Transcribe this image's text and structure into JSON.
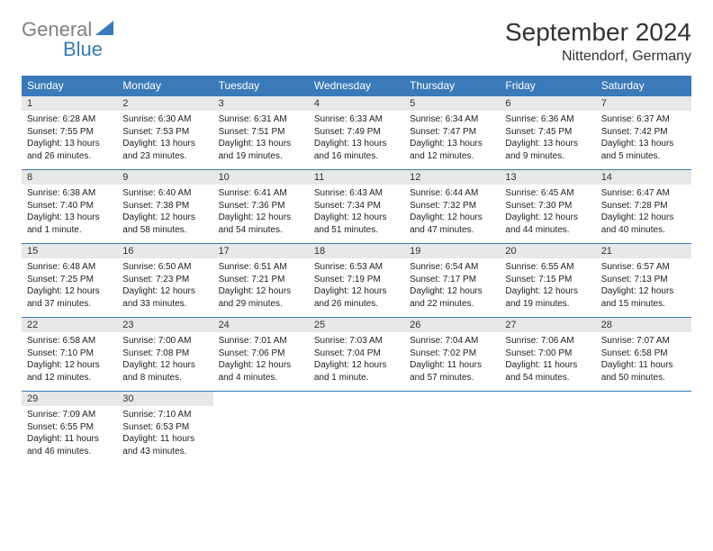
{
  "logo": {
    "text1": "General",
    "text2": "Blue"
  },
  "title": "September 2024",
  "location": "Nittendorf, Germany",
  "colors": {
    "header_bg": "#3a7ab8",
    "header_text": "#ffffff",
    "daynum_bg": "#e8e8e8",
    "text": "#222222",
    "border": "#3a7ab8"
  },
  "weekdays": [
    "Sunday",
    "Monday",
    "Tuesday",
    "Wednesday",
    "Thursday",
    "Friday",
    "Saturday"
  ],
  "days": [
    {
      "n": "1",
      "sunrise": "6:28 AM",
      "sunset": "7:55 PM",
      "daylight": "13 hours and 26 minutes."
    },
    {
      "n": "2",
      "sunrise": "6:30 AM",
      "sunset": "7:53 PM",
      "daylight": "13 hours and 23 minutes."
    },
    {
      "n": "3",
      "sunrise": "6:31 AM",
      "sunset": "7:51 PM",
      "daylight": "13 hours and 19 minutes."
    },
    {
      "n": "4",
      "sunrise": "6:33 AM",
      "sunset": "7:49 PM",
      "daylight": "13 hours and 16 minutes."
    },
    {
      "n": "5",
      "sunrise": "6:34 AM",
      "sunset": "7:47 PM",
      "daylight": "13 hours and 12 minutes."
    },
    {
      "n": "6",
      "sunrise": "6:36 AM",
      "sunset": "7:45 PM",
      "daylight": "13 hours and 9 minutes."
    },
    {
      "n": "7",
      "sunrise": "6:37 AM",
      "sunset": "7:42 PM",
      "daylight": "13 hours and 5 minutes."
    },
    {
      "n": "8",
      "sunrise": "6:38 AM",
      "sunset": "7:40 PM",
      "daylight": "13 hours and 1 minute."
    },
    {
      "n": "9",
      "sunrise": "6:40 AM",
      "sunset": "7:38 PM",
      "daylight": "12 hours and 58 minutes."
    },
    {
      "n": "10",
      "sunrise": "6:41 AM",
      "sunset": "7:36 PM",
      "daylight": "12 hours and 54 minutes."
    },
    {
      "n": "11",
      "sunrise": "6:43 AM",
      "sunset": "7:34 PM",
      "daylight": "12 hours and 51 minutes."
    },
    {
      "n": "12",
      "sunrise": "6:44 AM",
      "sunset": "7:32 PM",
      "daylight": "12 hours and 47 minutes."
    },
    {
      "n": "13",
      "sunrise": "6:45 AM",
      "sunset": "7:30 PM",
      "daylight": "12 hours and 44 minutes."
    },
    {
      "n": "14",
      "sunrise": "6:47 AM",
      "sunset": "7:28 PM",
      "daylight": "12 hours and 40 minutes."
    },
    {
      "n": "15",
      "sunrise": "6:48 AM",
      "sunset": "7:25 PM",
      "daylight": "12 hours and 37 minutes."
    },
    {
      "n": "16",
      "sunrise": "6:50 AM",
      "sunset": "7:23 PM",
      "daylight": "12 hours and 33 minutes."
    },
    {
      "n": "17",
      "sunrise": "6:51 AM",
      "sunset": "7:21 PM",
      "daylight": "12 hours and 29 minutes."
    },
    {
      "n": "18",
      "sunrise": "6:53 AM",
      "sunset": "7:19 PM",
      "daylight": "12 hours and 26 minutes."
    },
    {
      "n": "19",
      "sunrise": "6:54 AM",
      "sunset": "7:17 PM",
      "daylight": "12 hours and 22 minutes."
    },
    {
      "n": "20",
      "sunrise": "6:55 AM",
      "sunset": "7:15 PM",
      "daylight": "12 hours and 19 minutes."
    },
    {
      "n": "21",
      "sunrise": "6:57 AM",
      "sunset": "7:13 PM",
      "daylight": "12 hours and 15 minutes."
    },
    {
      "n": "22",
      "sunrise": "6:58 AM",
      "sunset": "7:10 PM",
      "daylight": "12 hours and 12 minutes."
    },
    {
      "n": "23",
      "sunrise": "7:00 AM",
      "sunset": "7:08 PM",
      "daylight": "12 hours and 8 minutes."
    },
    {
      "n": "24",
      "sunrise": "7:01 AM",
      "sunset": "7:06 PM",
      "daylight": "12 hours and 4 minutes."
    },
    {
      "n": "25",
      "sunrise": "7:03 AM",
      "sunset": "7:04 PM",
      "daylight": "12 hours and 1 minute."
    },
    {
      "n": "26",
      "sunrise": "7:04 AM",
      "sunset": "7:02 PM",
      "daylight": "11 hours and 57 minutes."
    },
    {
      "n": "27",
      "sunrise": "7:06 AM",
      "sunset": "7:00 PM",
      "daylight": "11 hours and 54 minutes."
    },
    {
      "n": "28",
      "sunrise": "7:07 AM",
      "sunset": "6:58 PM",
      "daylight": "11 hours and 50 minutes."
    },
    {
      "n": "29",
      "sunrise": "7:09 AM",
      "sunset": "6:55 PM",
      "daylight": "11 hours and 46 minutes."
    },
    {
      "n": "30",
      "sunrise": "7:10 AM",
      "sunset": "6:53 PM",
      "daylight": "11 hours and 43 minutes."
    }
  ],
  "labels": {
    "sunrise": "Sunrise: ",
    "sunset": "Sunset: ",
    "daylight": "Daylight: "
  }
}
